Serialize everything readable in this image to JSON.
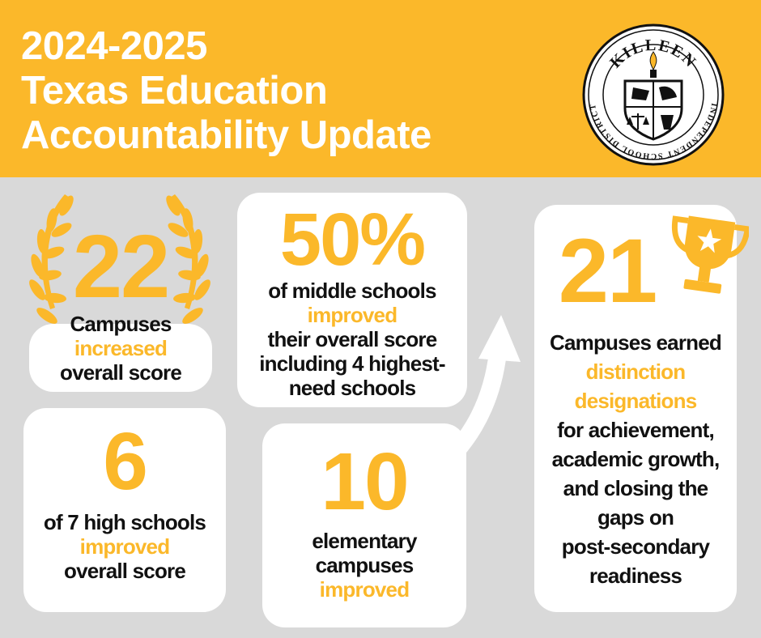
{
  "header": {
    "title_line1": "2024-2025",
    "title_line2": "Texas Education",
    "title_line3": "Accountability Update",
    "logo": {
      "top_text": "KILLEEN",
      "ring_text": "INDEPENDENT SCHOOL DISTRICT"
    }
  },
  "colors": {
    "accent": "#fbb82a",
    "background": "#d9d9d9",
    "card": "#ffffff",
    "text": "#111111"
  },
  "stats": {
    "campuses_increased": {
      "number": "22",
      "line1": "Campuses",
      "line2": "increased",
      "line3": "overall score",
      "icon": "laurel-wreath-icon"
    },
    "middle_schools": {
      "number": "50%",
      "line1": "of middle schools",
      "line2": "improved",
      "line3": "their overall score",
      "line4": "including 4 highest-",
      "line5": "need schools"
    },
    "distinctions": {
      "number": "21",
      "line1": "Campuses earned",
      "line2": "distinction",
      "line3": "designations",
      "line4": "for achievement,",
      "line5": "academic growth,",
      "line6": "and closing the",
      "line7": "gaps on",
      "line8": "post-secondary",
      "line9": "readiness",
      "icon": "trophy-icon"
    },
    "high_schools": {
      "number": "6",
      "line1": "of 7 high schools",
      "line2": "improved",
      "line3": "overall score"
    },
    "elementary": {
      "number": "10",
      "line1": "elementary",
      "line2": "campuses",
      "line3": "improved",
      "icon": "upward-arrow-icon"
    }
  }
}
